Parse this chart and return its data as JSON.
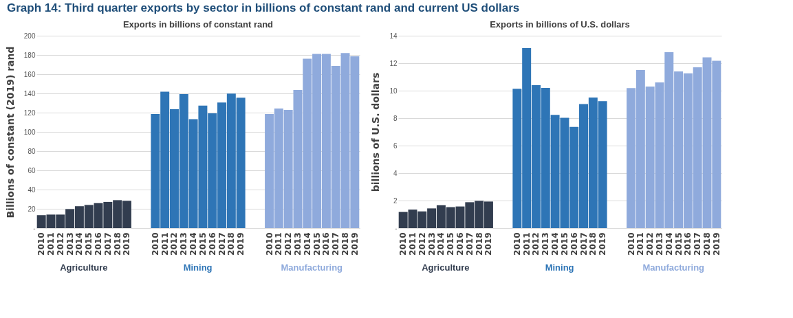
{
  "chart_data": [
    {
      "type": "bar",
      "title": "Exports in billions of constant rand",
      "ylabel": "Billions of constant (2019) rand",
      "annotations": [
        "Graph 14: Third quarter exports by sector in billions of constant rand and current US dollars"
      ],
      "categories": [
        "2010",
        "2011",
        "2012",
        "2013",
        "2014",
        "2015",
        "2016",
        "2017",
        "2018",
        "2019",
        null,
        null,
        "2010",
        "2011",
        "2012",
        "2013",
        "2014",
        "2015",
        "2016",
        "2017",
        "2018",
        "2019",
        null,
        null,
        "2010",
        "2011",
        "2012",
        "2013",
        "2014",
        "2015",
        "2016",
        "2017",
        "2018",
        "2019"
      ],
      "series": [
        {
          "name": "Agriculture",
          "color": "#323d4f",
          "values": [
            13.4,
            14,
            14,
            19.7,
            22.7,
            24,
            25.9,
            27.2,
            29,
            28.3,
            null,
            null,
            null,
            null,
            null,
            null,
            null,
            null,
            null,
            null,
            null,
            null,
            null,
            null,
            null,
            null,
            null,
            null,
            null,
            null,
            null,
            null,
            null,
            null
          ]
        },
        {
          "name": "Mining",
          "color": "#2e75b6",
          "values": [
            null,
            null,
            null,
            null,
            null,
            null,
            null,
            null,
            null,
            null,
            null,
            null,
            118.6,
            141.7,
            123.6,
            139.2,
            113.2,
            127.4,
            119.3,
            130.6,
            139.9,
            135.6,
            null,
            null,
            null,
            null,
            null,
            null,
            null,
            null,
            null,
            null,
            null,
            null
          ]
        },
        {
          "name": "Manufacturing",
          "color": "#8faadc",
          "values": [
            null,
            null,
            null,
            null,
            null,
            null,
            null,
            null,
            null,
            null,
            null,
            null,
            null,
            null,
            null,
            null,
            null,
            null,
            null,
            null,
            null,
            null,
            null,
            null,
            118.6,
            124.3,
            122.9,
            143.5,
            176,
            181,
            181,
            168.5,
            182,
            178.5
          ]
        }
      ],
      "ylim": [
        0,
        200
      ],
      "yticks": [
        {
          "value": 0,
          "label": "-"
        },
        20,
        40,
        60,
        80,
        100,
        120,
        140,
        160,
        180,
        200
      ],
      "grid": "y",
      "legend": false
    },
    {
      "type": "bar",
      "title": "Exports in billions of U.S. dollars",
      "ylabel": "billions of U.S. dollars",
      "categories": [
        "2010",
        "2011",
        "2012",
        "2013",
        "2014",
        "2015",
        "2016",
        "2017",
        "2018",
        "2019",
        null,
        null,
        "2010",
        "2011",
        "2012",
        "2013",
        "2014",
        "2015",
        "2016",
        "2017",
        "2018",
        "2019",
        null,
        null,
        "2010",
        "2011",
        "2012",
        "2013",
        "2014",
        "2015",
        "2016",
        "2017",
        "2018",
        "2019"
      ],
      "series": [
        {
          "name": "Agriculture",
          "color": "#323d4f",
          "values": [
            1.17,
            1.34,
            1.21,
            1.43,
            1.66,
            1.52,
            1.57,
            1.88,
            1.98,
            1.93,
            null,
            null,
            null,
            null,
            null,
            null,
            null,
            null,
            null,
            null,
            null,
            null,
            null,
            null,
            null,
            null,
            null,
            null,
            null,
            null,
            null,
            null,
            null,
            null
          ]
        },
        {
          "name": "Mining",
          "color": "#2e75b6",
          "values": [
            null,
            null,
            null,
            null,
            null,
            null,
            null,
            null,
            null,
            null,
            null,
            null,
            10.14,
            13.1,
            10.4,
            10.2,
            8.24,
            8.02,
            7.36,
            9.02,
            9.5,
            9.24,
            null,
            null,
            null,
            null,
            null,
            null,
            null,
            null,
            null,
            null,
            null,
            null
          ]
        },
        {
          "name": "Manufacturing",
          "color": "#8faadc",
          "values": [
            null,
            null,
            null,
            null,
            null,
            null,
            null,
            null,
            null,
            null,
            null,
            null,
            null,
            null,
            null,
            null,
            null,
            null,
            null,
            null,
            null,
            null,
            null,
            null,
            10.19,
            11.5,
            10.3,
            10.6,
            12.8,
            11.4,
            11.26,
            11.7,
            12.43,
            12.17
          ]
        }
      ],
      "ylim": [
        0,
        14
      ],
      "yticks": [
        {
          "value": 0,
          "label": "-"
        },
        2,
        4,
        6,
        8,
        10,
        12,
        14
      ],
      "grid": "y",
      "legend": false
    }
  ]
}
